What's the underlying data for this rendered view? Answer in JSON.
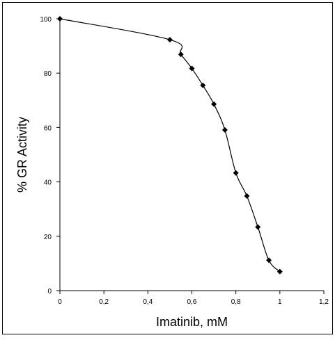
{
  "chart_data": {
    "type": "line",
    "title": "",
    "xlabel": "Imatinib,  mM",
    "ylabel": "% GR Activity",
    "xlim": [
      0,
      1.2
    ],
    "ylim": [
      0,
      100
    ],
    "x_ticks": [
      0,
      0.2,
      0.4,
      0.6,
      0.8,
      1,
      1.2
    ],
    "x_tick_labels": [
      "0",
      "0,2",
      "0,4",
      "0,6",
      "0,8",
      "1",
      "1,2"
    ],
    "y_ticks": [
      0,
      20,
      40,
      60,
      80,
      100
    ],
    "y_tick_labels": [
      "0",
      "20",
      "40",
      "60",
      "80",
      "100"
    ],
    "grid": false,
    "legend": "none",
    "marker": "diamond",
    "line_color": "#000000",
    "series": [
      {
        "x": [
          0,
          0.5,
          0.55,
          0.6,
          0.65,
          0.7,
          0.75,
          0.8,
          0.85,
          0.9,
          0.95,
          1.0
        ],
        "y": [
          100,
          92.3,
          86.9,
          81.7,
          75.5,
          68.6,
          59.1,
          43.3,
          34.8,
          23.4,
          11.2,
          7.0
        ]
      }
    ]
  }
}
